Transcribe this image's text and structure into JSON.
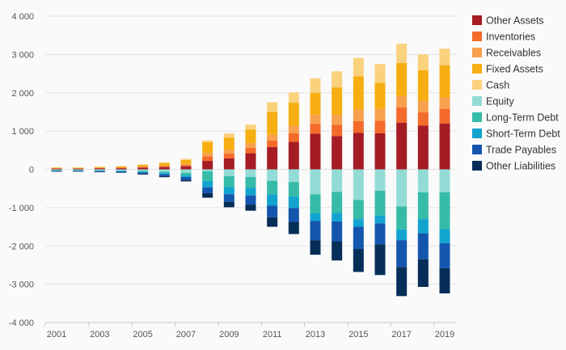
{
  "chart_data": {
    "type": "bar",
    "stacked": true,
    "x": [
      2001,
      2002,
      2003,
      2004,
      2005,
      2006,
      2007,
      2008,
      2009,
      2010,
      2011,
      2012,
      2013,
      2014,
      2015,
      2016,
      2017,
      2018,
      2019
    ],
    "x_tick_labels": [
      "2001",
      "2003",
      "2005",
      "2007",
      "2009",
      "2011",
      "2013",
      "2015",
      "2017",
      "2019"
    ],
    "y_tick_labels": [
      "4 000",
      "3 000",
      "2 000",
      "1 000",
      "0",
      "-1 000",
      "-2 000",
      "-3 000",
      "-4 000"
    ],
    "ylim": [
      -4000,
      4000
    ],
    "grid": true,
    "legend_position": "right",
    "assets": [
      {
        "name": "Other Assets",
        "color": "#a51c24",
        "values": [
          20,
          20,
          25,
          30,
          45,
          60,
          80,
          220,
          290,
          420,
          580,
          720,
          930,
          870,
          950,
          940,
          1220,
          1140,
          1200
        ]
      },
      {
        "name": "Inventories",
        "color": "#f46a2b",
        "values": [
          8,
          8,
          10,
          12,
          20,
          25,
          35,
          120,
          120,
          140,
          170,
          220,
          260,
          290,
          310,
          330,
          400,
          350,
          380
        ]
      },
      {
        "name": "Receivables",
        "color": "#f8a04d",
        "values": [
          6,
          6,
          8,
          10,
          15,
          20,
          30,
          90,
          100,
          120,
          150,
          200,
          230,
          260,
          310,
          310,
          290,
          300,
          300
        ]
      },
      {
        "name": "Fixed Assets",
        "color": "#f6ae12",
        "values": [
          15,
          15,
          20,
          25,
          40,
          60,
          100,
          280,
          320,
          360,
          600,
          600,
          580,
          720,
          860,
          680,
          870,
          800,
          840
        ]
      },
      {
        "name": "Cash",
        "color": "#fad27e",
        "values": [
          5,
          5,
          6,
          8,
          12,
          20,
          30,
          45,
          110,
          130,
          250,
          270,
          380,
          420,
          480,
          490,
          500,
          410,
          430
        ]
      }
    ],
    "liabilities": [
      {
        "name": "Equity",
        "color": "#93dcd5",
        "values": [
          -20,
          -20,
          -25,
          -30,
          -40,
          -60,
          -90,
          -50,
          -180,
          -200,
          -300,
          -330,
          -650,
          -590,
          -800,
          -560,
          -970,
          -600,
          -600
        ]
      },
      {
        "name": "Long-Term Debt",
        "color": "#36bba8",
        "values": [
          -10,
          -10,
          -12,
          -15,
          -25,
          -40,
          -70,
          -250,
          -280,
          -280,
          -350,
          -380,
          -500,
          -550,
          -500,
          -650,
          -600,
          -700,
          -960
        ]
      },
      {
        "name": "Short-Term Debt",
        "color": "#12a4cf",
        "values": [
          -5,
          -5,
          -8,
          -10,
          -15,
          -25,
          -40,
          -170,
          -190,
          -200,
          -300,
          -300,
          -200,
          -220,
          -200,
          -200,
          -280,
          -370,
          -370
        ]
      },
      {
        "name": "Trade Payables",
        "color": "#1456ae",
        "values": [
          -15,
          -15,
          -20,
          -25,
          -35,
          -50,
          -70,
          -150,
          -200,
          -240,
          -300,
          -360,
          -500,
          -520,
          -580,
          -550,
          -700,
          -680,
          -650
        ]
      },
      {
        "name": "Other Liabilities",
        "color": "#062e58",
        "values": [
          -8,
          -8,
          -10,
          -12,
          -20,
          -30,
          -45,
          -120,
          -140,
          -160,
          -250,
          -320,
          -380,
          -500,
          -600,
          -800,
          -760,
          -720,
          -660
        ]
      }
    ]
  }
}
